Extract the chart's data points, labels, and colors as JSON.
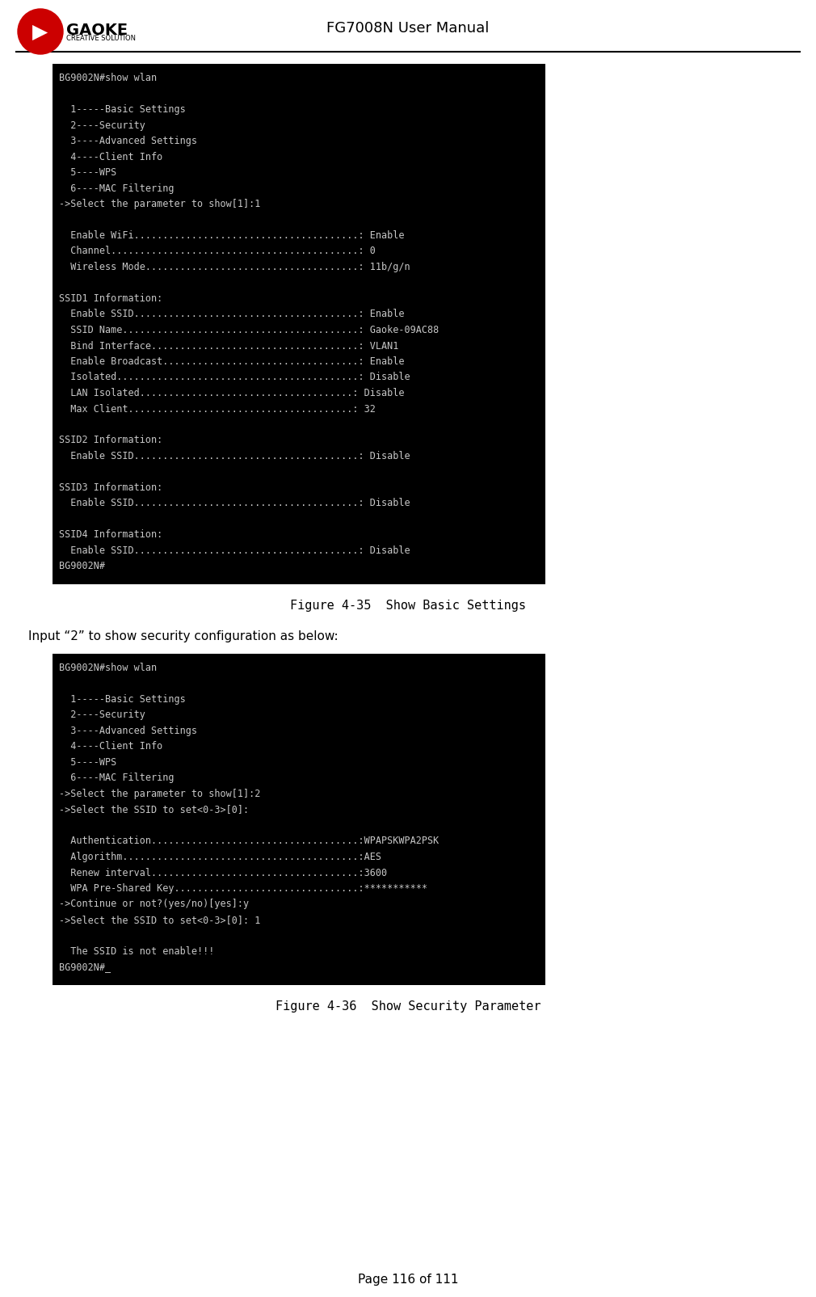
{
  "page_title": "FG7008N User Manual",
  "page_number": "Page 116 of 111",
  "bg_color": "#ffffff",
  "header_line_color": "#000000",
  "terminal_bg": "#000000",
  "terminal_text_color": "#c8c8c8",
  "figure1_caption": "Figure 4-35  Show Basic Settings",
  "figure2_caption": "Figure 4-36  Show Security Parameter",
  "body_text": "Input “2” to show security configuration as below:",
  "terminal1_lines": [
    "BG9002N#show wlan",
    "",
    "  1-----Basic Settings",
    "  2----Security",
    "  3----Advanced Settings",
    "  4----Client Info",
    "  5----WPS",
    "  6----MAC Filtering",
    "->Select the parameter to show[1]:1",
    "",
    "  Enable WiFi.......................................: Enable",
    "  Channel...........................................: 0",
    "  Wireless Mode.....................................: 11b/g/n",
    "",
    "SSID1 Information:",
    "  Enable SSID.......................................: Enable",
    "  SSID Name.........................................: Gaoke-09AC88",
    "  Bind Interface....................................: VLAN1",
    "  Enable Broadcast..................................: Enable",
    "  Isolated..........................................: Disable",
    "  LAN Isolated.....................................: Disable",
    "  Max Client.......................................: 32",
    "",
    "SSID2 Information:",
    "  Enable SSID.......................................: Disable",
    "",
    "SSID3 Information:",
    "  Enable SSID.......................................: Disable",
    "",
    "SSID4 Information:",
    "  Enable SSID.......................................: Disable",
    "BG9002N#"
  ],
  "terminal2_lines": [
    "BG9002N#show wlan",
    "",
    "  1-----Basic Settings",
    "  2----Security",
    "  3----Advanced Settings",
    "  4----Client Info",
    "  5----WPS",
    "  6----MAC Filtering",
    "->Select the parameter to show[1]:2",
    "->Select the SSID to set<0-3>[0]:",
    "",
    "  Authentication....................................:WPAPSKWPA2PSK",
    "  Algorithm.........................................:AES",
    "  Renew interval....................................:3600",
    "  WPA Pre-Shared Key................................:***********",
    "->Continue or not?(yes/no)[yes]:y",
    "->Select the SSID to set<0-3>[0]: 1",
    "",
    "  The SSID is not enable!!!",
    "BG9002N#_"
  ]
}
